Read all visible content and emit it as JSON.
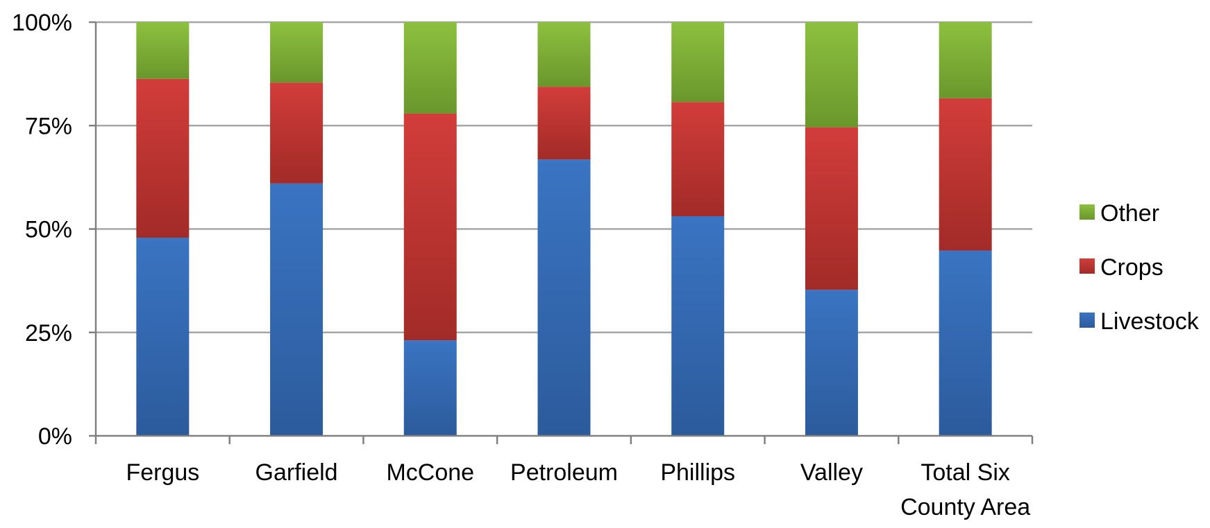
{
  "chart_data": {
    "type": "bar",
    "stacked": true,
    "percent": true,
    "categories": [
      "Fergus",
      "Garfield",
      "McCone",
      "Petroleum",
      "Phillips",
      "Valley",
      "Total Six County Area"
    ],
    "category_lines": [
      [
        "Fergus"
      ],
      [
        "Garfield"
      ],
      [
        "McCone"
      ],
      [
        "Petroleum"
      ],
      [
        "Phillips"
      ],
      [
        "Valley"
      ],
      [
        "Total Six",
        "County Area"
      ]
    ],
    "series": [
      {
        "name": "Livestock",
        "values": [
          47.9,
          61.0,
          23.1,
          66.8,
          53.1,
          35.3,
          44.8
        ],
        "color": "#3a74c2",
        "color_dark": "#2c5b9c"
      },
      {
        "name": "Crops",
        "values": [
          38.4,
          24.4,
          54.8,
          17.6,
          27.6,
          39.3,
          36.8
        ],
        "color": "#d23d3a",
        "color_dark": "#a22b28"
      },
      {
        "name": "Other",
        "values": [
          13.7,
          14.6,
          22.1,
          15.6,
          19.3,
          25.4,
          18.4
        ],
        "color": "#8dc03f",
        "color_dark": "#6a972c"
      }
    ],
    "yticks": [
      "0%",
      "25%",
      "50%",
      "75%",
      "100%"
    ],
    "ytick_values": [
      0,
      25,
      50,
      75,
      100
    ],
    "ylim": [
      0,
      100
    ],
    "title": "",
    "xlabel": "",
    "ylabel": "",
    "grid": true,
    "legend": {
      "position": "right",
      "order": [
        "Other",
        "Crops",
        "Livestock"
      ]
    },
    "colors": {
      "gridline": "#a6a6a6",
      "axis": "#808080"
    }
  }
}
